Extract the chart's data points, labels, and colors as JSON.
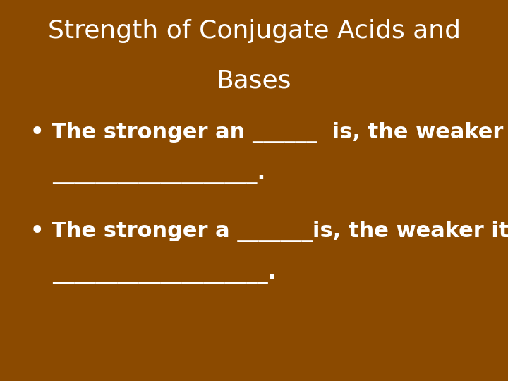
{
  "background_color": "#8B4A00",
  "title_line1": "Strength of Conjugate Acids and",
  "title_line2": "Bases",
  "title_color": "#FFFFFF",
  "title_fontsize": 26,
  "title_fontweight": "normal",
  "bullet_color": "#FFFFFF",
  "bullet_fontsize": 22,
  "bullet_fontweight": "bold",
  "bullet1_line1": "• The stronger an ______  is, the weaker its",
  "bullet1_line2": "   ___________________.",
  "bullet2_line1": "• The stronger a _______is, the weaker its",
  "bullet2_line2": "   ____________________.",
  "figwidth": 7.2,
  "figheight": 5.4,
  "dpi": 100
}
